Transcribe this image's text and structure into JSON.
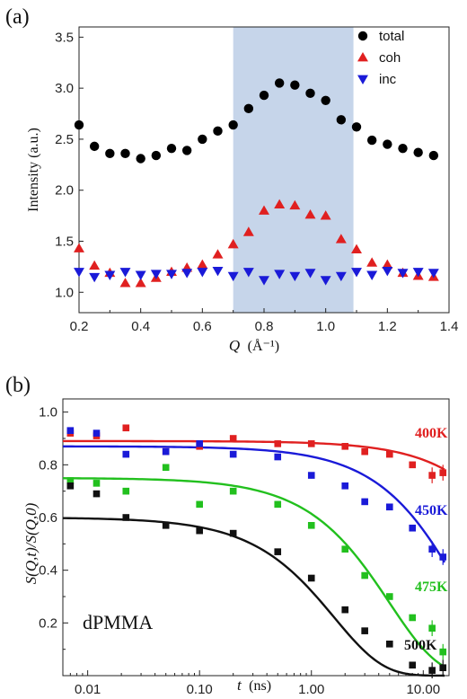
{
  "chart_data": [
    {
      "panel_label": "(a)",
      "type": "scatter",
      "xlabel_var": "Q",
      "xlabel_unit": "(Å⁻¹)",
      "ylabel": "Intensity (a.u.)",
      "xlim": [
        0.2,
        1.4
      ],
      "ylim": [
        0.8,
        3.6
      ],
      "x_ticks": [
        "0.2",
        "0.4",
        "0.6",
        "0.8",
        "1.0",
        "1.2",
        "1.4"
      ],
      "y_ticks": [
        "1.0",
        "1.5",
        "2.0",
        "2.5",
        "3.0",
        "3.5"
      ],
      "shaded_band": {
        "x_start": 0.7,
        "x_end": 1.09,
        "color": "#c6d5ea"
      },
      "legend": {
        "placement": "top-right"
      },
      "series": [
        {
          "name": "total",
          "marker": "circle",
          "color": "#000000",
          "x": [
            0.2,
            0.25,
            0.3,
            0.35,
            0.4,
            0.45,
            0.5,
            0.55,
            0.6,
            0.65,
            0.7,
            0.75,
            0.8,
            0.85,
            0.9,
            0.95,
            1.0,
            1.05,
            1.1,
            1.15,
            1.2,
            1.25,
            1.3,
            1.35
          ],
          "y": [
            2.64,
            2.43,
            2.36,
            2.36,
            2.31,
            2.34,
            2.41,
            2.39,
            2.5,
            2.58,
            2.64,
            2.8,
            2.93,
            3.05,
            3.03,
            2.95,
            2.88,
            2.69,
            2.62,
            2.49,
            2.45,
            2.41,
            2.37,
            2.34
          ]
        },
        {
          "name": "coh",
          "marker": "triangle-up",
          "color": "#e02020",
          "x": [
            0.2,
            0.25,
            0.3,
            0.35,
            0.4,
            0.45,
            0.5,
            0.55,
            0.6,
            0.65,
            0.7,
            0.75,
            0.8,
            0.85,
            0.9,
            0.95,
            1.0,
            1.05,
            1.1,
            1.15,
            1.2,
            1.25,
            1.3,
            1.35
          ],
          "y": [
            1.43,
            1.26,
            1.19,
            1.09,
            1.09,
            1.14,
            1.2,
            1.24,
            1.27,
            1.37,
            1.47,
            1.59,
            1.8,
            1.86,
            1.85,
            1.76,
            1.75,
            1.52,
            1.42,
            1.29,
            1.27,
            1.19,
            1.16,
            1.15
          ]
        },
        {
          "name": "inc",
          "marker": "triangle-down",
          "color": "#1a1ad8",
          "x": [
            0.2,
            0.25,
            0.3,
            0.35,
            0.4,
            0.45,
            0.5,
            0.55,
            0.6,
            0.65,
            0.7,
            0.75,
            0.8,
            0.85,
            0.9,
            0.95,
            1.0,
            1.05,
            1.1,
            1.15,
            1.2,
            1.25,
            1.3,
            1.35
          ],
          "y": [
            1.2,
            1.15,
            1.17,
            1.2,
            1.17,
            1.18,
            1.18,
            1.19,
            1.2,
            1.21,
            1.16,
            1.2,
            1.12,
            1.18,
            1.16,
            1.19,
            1.12,
            1.16,
            1.2,
            1.17,
            1.21,
            1.19,
            1.2,
            1.19
          ]
        }
      ]
    },
    {
      "panel_label": "(b)",
      "type": "scatter",
      "xscale": "log",
      "xlabel_var": "t",
      "xlabel_unit": "(ns)",
      "ylabel": "S(Q,t)/S(Q,0)",
      "xlim": [
        0.006,
        17
      ],
      "ylim": [
        0.0,
        1.05
      ],
      "x_ticks": [
        "0.01",
        "0.10",
        "1.00",
        "10.00"
      ],
      "y_ticks": [
        "0.2",
        "0.4",
        "0.6",
        "0.8",
        "1.0"
      ],
      "annotation": "dPMMA",
      "t": [
        0.007,
        0.012,
        0.022,
        0.05,
        0.1,
        0.2,
        0.5,
        1.0,
        2.0,
        3.0,
        5.0,
        8.0,
        12.0,
        15.0
      ],
      "series": [
        {
          "name": "400K",
          "color": "#e02020",
          "y": [
            0.92,
            0.91,
            0.94,
            0.85,
            0.87,
            0.9,
            0.88,
            0.88,
            0.87,
            0.85,
            0.84,
            0.8,
            0.76,
            0.77
          ],
          "fit": {
            "a": 0.89,
            "tau": 120,
            "beta": 1.0
          }
        },
        {
          "name": "450K",
          "color": "#1a1ad8",
          "y": [
            0.93,
            0.92,
            0.84,
            0.85,
            0.88,
            0.84,
            0.83,
            0.76,
            0.72,
            0.66,
            0.64,
            0.56,
            0.48,
            0.45
          ],
          "fit": {
            "a": 0.87,
            "tau": 22,
            "beta": 1.0
          }
        },
        {
          "name": "475K",
          "color": "#22c01e",
          "y": [
            0.74,
            0.73,
            0.7,
            0.79,
            0.65,
            0.7,
            0.65,
            0.57,
            0.48,
            0.38,
            0.3,
            0.22,
            0.18,
            0.09
          ],
          "fit": {
            "a": 0.75,
            "tau": 5.0,
            "beta": 1.0
          }
        },
        {
          "name": "500K",
          "color": "#111111",
          "y": [
            0.72,
            0.69,
            0.6,
            0.57,
            0.55,
            0.54,
            0.47,
            0.37,
            0.25,
            0.17,
            0.12,
            0.04,
            0.02,
            0.03
          ],
          "fit": {
            "a": 0.6,
            "tau": 1.6,
            "beta": 1.0
          }
        }
      ]
    }
  ]
}
